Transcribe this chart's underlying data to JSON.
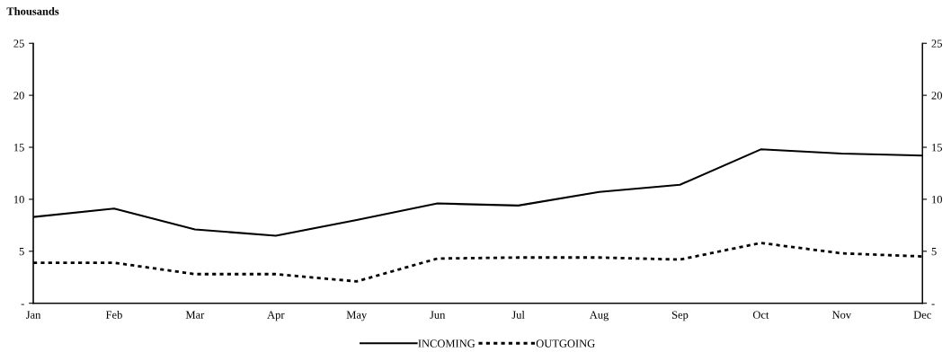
{
  "chart_data": {
    "type": "line",
    "ylabel": "Thousands",
    "categories": [
      "Jan",
      "Feb",
      "Mar",
      "Apr",
      "May",
      "Jun",
      "Jul",
      "Aug",
      "Sep",
      "Oct",
      "Nov",
      "Dec"
    ],
    "series": [
      {
        "name": "INCOMING",
        "color": "#000000",
        "line_style": "solid",
        "values": [
          8.3,
          9.1,
          7.1,
          6.5,
          8.0,
          9.6,
          9.4,
          10.7,
          11.4,
          14.8,
          14.4,
          14.2
        ]
      },
      {
        "name": "OUTGOING",
        "color": "#000000",
        "line_style": "dotted",
        "values": [
          3.9,
          3.9,
          2.8,
          2.8,
          2.1,
          4.3,
          4.4,
          4.4,
          4.2,
          5.8,
          4.8,
          4.5
        ]
      }
    ],
    "ylim": [
      0,
      25
    ],
    "yticks": [
      {
        "value": 0,
        "label": "-"
      },
      5,
      10,
      15,
      20,
      25
    ],
    "y2lim": [
      0,
      25
    ],
    "y2ticks": [
      {
        "value": 0,
        "label": "-"
      },
      5,
      10,
      15,
      20,
      25
    ],
    "grid": false,
    "legend": "bottom",
    "marker": "none"
  }
}
